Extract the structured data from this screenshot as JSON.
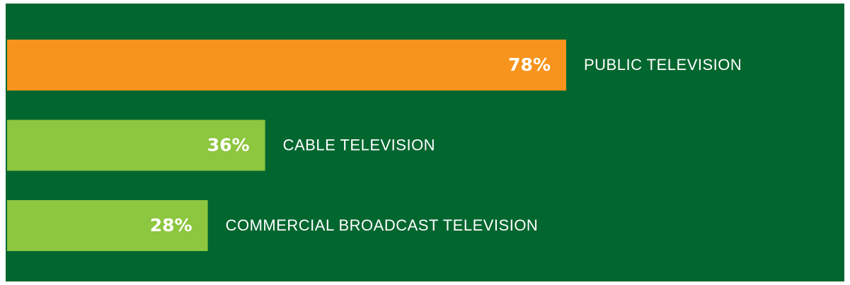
{
  "chart_data": {
    "type": "bar",
    "orientation": "horizontal",
    "categories": [
      "PUBLIC TELEVISION",
      "CABLE TELEVISION",
      "COMMERCIAL BROADCAST TELEVISION"
    ],
    "values": [
      78,
      36,
      28
    ],
    "value_labels": [
      "78%",
      "36%",
      "28%"
    ],
    "colors": [
      "#f7941d",
      "#8dc63f",
      "#8dc63f"
    ],
    "background": "#02662f"
  }
}
